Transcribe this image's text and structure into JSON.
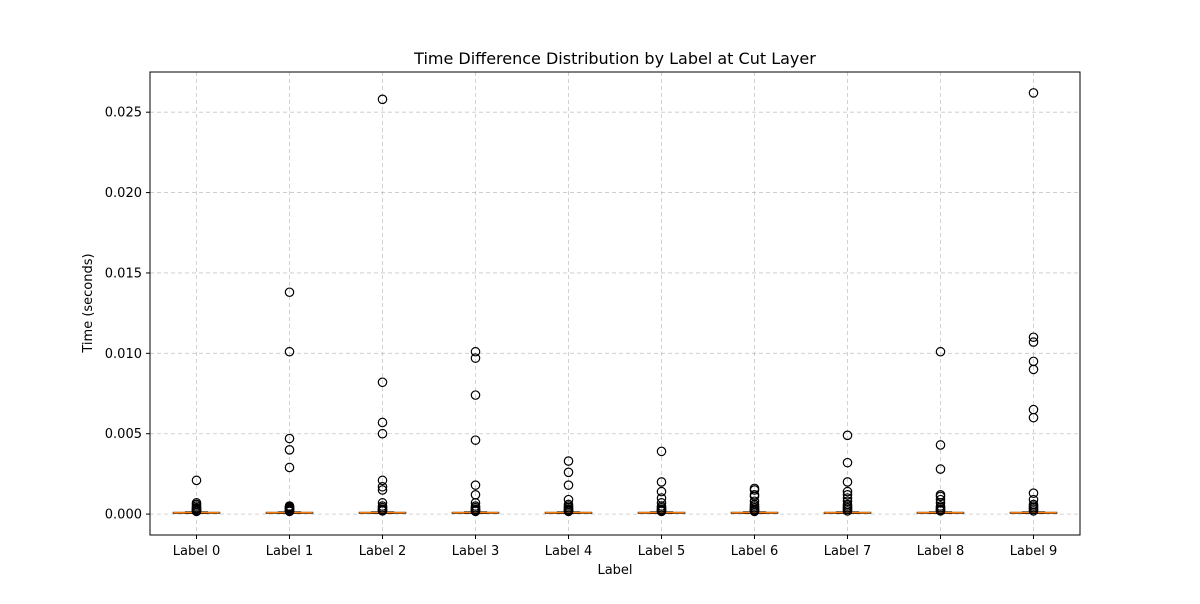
{
  "chart_data": {
    "type": "boxplot",
    "title": "Time Difference Distribution by Label at Cut Layer",
    "xlabel": "Label",
    "ylabel": "Time (seconds)",
    "categories": [
      "Label 0",
      "Label 1",
      "Label 2",
      "Label 3",
      "Label 4",
      "Label 5",
      "Label 6",
      "Label 7",
      "Label 8",
      "Label 9"
    ],
    "ylim": [
      -0.0013,
      0.0275
    ],
    "yticks": [
      0.0,
      0.005,
      0.01,
      0.015,
      0.02,
      0.025
    ],
    "ytick_labels": [
      "0.000",
      "0.005",
      "0.010",
      "0.015",
      "0.020",
      "0.025"
    ],
    "grid": true,
    "box_color": "#000000",
    "median_color": "#ff7f0e",
    "boxes": [
      {
        "label": "Label 0",
        "q1": 7e-05,
        "median": 9e-05,
        "q3": 0.00011,
        "whisker_low": 4e-05,
        "whisker_high": 0.00014,
        "outliers": [
          0.0021,
          0.0007,
          0.0006,
          0.0005,
          0.0004,
          0.00035,
          0.0003,
          0.00025,
          0.0002,
          0.00017
        ]
      },
      {
        "label": "Label 1",
        "q1": 7e-05,
        "median": 9e-05,
        "q3": 0.00011,
        "whisker_low": 4e-05,
        "whisker_high": 0.00014,
        "outliers": [
          0.0138,
          0.0101,
          0.0047,
          0.004,
          0.0029,
          0.0005,
          0.00045,
          0.0004,
          0.00035,
          0.0003,
          0.00025,
          0.0002,
          0.00017
        ]
      },
      {
        "label": "Label 2",
        "q1": 7e-05,
        "median": 9e-05,
        "q3": 0.00011,
        "whisker_low": 4e-05,
        "whisker_high": 0.00014,
        "outliers": [
          0.0258,
          0.0082,
          0.0057,
          0.005,
          0.0021,
          0.0017,
          0.0015,
          0.0007,
          0.0005,
          0.0004,
          0.0003,
          0.00025,
          0.0002
        ]
      },
      {
        "label": "Label 3",
        "q1": 7e-05,
        "median": 9e-05,
        "q3": 0.00011,
        "whisker_low": 4e-05,
        "whisker_high": 0.00014,
        "outliers": [
          0.0101,
          0.0097,
          0.0074,
          0.0046,
          0.0018,
          0.0012,
          0.0007,
          0.0005,
          0.0004,
          0.0003,
          0.00025,
          0.0002,
          0.00017
        ]
      },
      {
        "label": "Label 4",
        "q1": 7e-05,
        "median": 9e-05,
        "q3": 0.00011,
        "whisker_low": 4e-05,
        "whisker_high": 0.00014,
        "outliers": [
          0.0033,
          0.0026,
          0.0018,
          0.0009,
          0.0006,
          0.0005,
          0.0004,
          0.0003,
          0.00025,
          0.0002,
          0.00017
        ]
      },
      {
        "label": "Label 5",
        "q1": 7e-05,
        "median": 9e-05,
        "q3": 0.00011,
        "whisker_low": 4e-05,
        "whisker_high": 0.00014,
        "outliers": [
          0.0039,
          0.002,
          0.0014,
          0.001,
          0.0007,
          0.0005,
          0.0004,
          0.0003,
          0.00025,
          0.0002,
          0.00017
        ]
      },
      {
        "label": "Label 6",
        "q1": 7e-05,
        "median": 9e-05,
        "q3": 0.00011,
        "whisker_low": 4e-05,
        "whisker_high": 0.00014,
        "outliers": [
          0.0016,
          0.0015,
          0.0012,
          0.0011,
          0.0008,
          0.0006,
          0.0005,
          0.0004,
          0.0003,
          0.00025,
          0.0002,
          0.00017
        ]
      },
      {
        "label": "Label 7",
        "q1": 7e-05,
        "median": 9e-05,
        "q3": 0.00011,
        "whisker_low": 4e-05,
        "whisker_high": 0.00014,
        "outliers": [
          0.0049,
          0.0032,
          0.002,
          0.0014,
          0.0012,
          0.001,
          0.0008,
          0.0006,
          0.0005,
          0.0004,
          0.0003,
          0.0002
        ]
      },
      {
        "label": "Label 8",
        "q1": 7e-05,
        "median": 9e-05,
        "q3": 0.00011,
        "whisker_low": 4e-05,
        "whisker_high": 0.00014,
        "outliers": [
          0.0101,
          0.0043,
          0.0028,
          0.0012,
          0.0011,
          0.0009,
          0.0007,
          0.0005,
          0.0004,
          0.0003,
          0.00025,
          0.0002
        ]
      },
      {
        "label": "Label 9",
        "q1": 7e-05,
        "median": 9e-05,
        "q3": 0.00011,
        "whisker_low": 4e-05,
        "whisker_high": 0.00014,
        "outliers": [
          0.0262,
          0.011,
          0.0107,
          0.0095,
          0.009,
          0.0065,
          0.006,
          0.0013,
          0.0009,
          0.0006,
          0.0005,
          0.0004,
          0.0003,
          0.0002
        ]
      }
    ]
  }
}
